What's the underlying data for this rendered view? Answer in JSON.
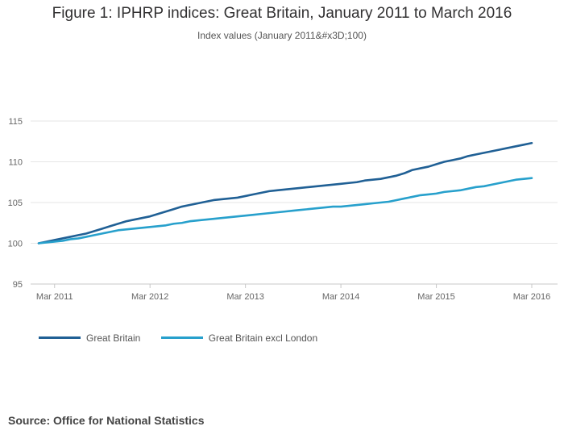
{
  "title": "Figure 1: IPHRP indices: Great Britain, January 2011 to March 2016",
  "subtitle": "Index values (January 2011&#x3D;100)",
  "source": "Source: Office for National Statistics",
  "colors": {
    "great_britain": "#206095",
    "excl_london": "#27a0cc",
    "grid": "#e6e6e6",
    "axis": "#c8c8c8"
  },
  "chart_data": {
    "type": "line",
    "title": "Figure 1: IPHRP indices: Great Britain, January 2011 to March 2016",
    "subtitle": "Index values (January 2011&#x3D;100)",
    "xlabel": "",
    "ylabel": "",
    "x_start": "2011-01",
    "x_end": "2016-03",
    "x_ticks": [
      "Mar 2011",
      "Mar 2012",
      "Mar 2013",
      "Mar 2014",
      "Mar 2015",
      "Mar 2016"
    ],
    "ylim": [
      95,
      115
    ],
    "y_ticks": [
      95,
      100,
      105,
      110,
      115
    ],
    "grid": true,
    "legend_position": "bottom-left",
    "x": [
      "2011-01",
      "2011-02",
      "2011-03",
      "2011-04",
      "2011-05",
      "2011-06",
      "2011-07",
      "2011-08",
      "2011-09",
      "2011-10",
      "2011-11",
      "2011-12",
      "2012-01",
      "2012-02",
      "2012-03",
      "2012-04",
      "2012-05",
      "2012-06",
      "2012-07",
      "2012-08",
      "2012-09",
      "2012-10",
      "2012-11",
      "2012-12",
      "2013-01",
      "2013-02",
      "2013-03",
      "2013-04",
      "2013-05",
      "2013-06",
      "2013-07",
      "2013-08",
      "2013-09",
      "2013-10",
      "2013-11",
      "2013-12",
      "2014-01",
      "2014-02",
      "2014-03",
      "2014-04",
      "2014-05",
      "2014-06",
      "2014-07",
      "2014-08",
      "2014-09",
      "2014-10",
      "2014-11",
      "2014-12",
      "2015-01",
      "2015-02",
      "2015-03",
      "2015-04",
      "2015-05",
      "2015-06",
      "2015-07",
      "2015-08",
      "2015-09",
      "2015-10",
      "2015-11",
      "2015-12",
      "2016-01",
      "2016-02",
      "2016-03"
    ],
    "series": [
      {
        "name": "Great Britain",
        "color": "#206095",
        "values": [
          100.0,
          100.2,
          100.4,
          100.6,
          100.8,
          101.0,
          101.2,
          101.5,
          101.8,
          102.1,
          102.4,
          102.7,
          102.9,
          103.1,
          103.3,
          103.6,
          103.9,
          104.2,
          104.5,
          104.7,
          104.9,
          105.1,
          105.3,
          105.4,
          105.5,
          105.6,
          105.8,
          106.0,
          106.2,
          106.4,
          106.5,
          106.6,
          106.7,
          106.8,
          106.9,
          107.0,
          107.1,
          107.2,
          107.3,
          107.4,
          107.5,
          107.7,
          107.8,
          107.9,
          108.1,
          108.3,
          108.6,
          109.0,
          109.2,
          109.4,
          109.7,
          110.0,
          110.2,
          110.4,
          110.7,
          110.9,
          111.1,
          111.3,
          111.5,
          111.7,
          111.9,
          112.1,
          112.3
        ]
      },
      {
        "name": "Great Britain excl London",
        "color": "#27a0cc",
        "values": [
          100.0,
          100.1,
          100.2,
          100.3,
          100.5,
          100.6,
          100.8,
          101.0,
          101.2,
          101.4,
          101.6,
          101.7,
          101.8,
          101.9,
          102.0,
          102.1,
          102.2,
          102.4,
          102.5,
          102.7,
          102.8,
          102.9,
          103.0,
          103.1,
          103.2,
          103.3,
          103.4,
          103.5,
          103.6,
          103.7,
          103.8,
          103.9,
          104.0,
          104.1,
          104.2,
          104.3,
          104.4,
          104.5,
          104.5,
          104.6,
          104.7,
          104.8,
          104.9,
          105.0,
          105.1,
          105.3,
          105.5,
          105.7,
          105.9,
          106.0,
          106.1,
          106.3,
          106.4,
          106.5,
          106.7,
          106.9,
          107.0,
          107.2,
          107.4,
          107.6,
          107.8,
          107.9,
          108.0
        ]
      }
    ]
  }
}
